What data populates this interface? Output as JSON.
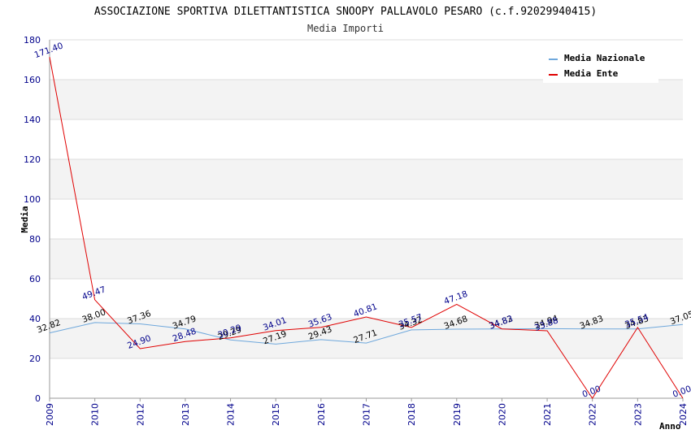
{
  "chart_data": {
    "type": "line",
    "title": "ASSOCIAZIONE SPORTIVA DILETTANTISTICA SNOOPY PALLAVOLO PESARO (c.f.92029940415)",
    "subtitle": "Media Importi",
    "xlabel": "Anno",
    "ylabel": "Media",
    "ylim": [
      0,
      180
    ],
    "yticks": [
      0,
      20,
      40,
      60,
      80,
      100,
      120,
      140,
      160,
      180
    ],
    "x": [
      "2009",
      "2010",
      "2012",
      "2013",
      "2014",
      "2015",
      "2016",
      "2017",
      "2018",
      "2019",
      "2020",
      "2021",
      "2022",
      "2023",
      "2024"
    ],
    "series": [
      {
        "name": "Media Nazionale",
        "color": "#6fa8dc",
        "values": [
          32.82,
          38.0,
          37.36,
          34.79,
          29.29,
          27.19,
          29.43,
          27.71,
          34.32,
          34.68,
          34.82,
          34.94,
          34.83,
          34.83,
          37.05
        ],
        "labels": [
          "32.82",
          "38.00",
          "37.36",
          "34.79",
          "29.29",
          "27.19",
          "29.43",
          "27.71",
          "34.32",
          "34.68",
          "34.82",
          "34.94",
          "34.83",
          "34.83",
          "37.05"
        ]
      },
      {
        "name": "Media Ente",
        "color": "#e00000",
        "values": [
          171.4,
          49.47,
          24.9,
          28.48,
          30.29,
          34.01,
          35.63,
          40.81,
          35.57,
          47.18,
          34.83,
          33.88,
          0.0,
          35.54,
          0.0
        ],
        "labels": [
          "171.40",
          "49.47",
          "24.90",
          "28.48",
          "30.29",
          "34.01",
          "35.63",
          "40.81",
          "35.57",
          "47.18",
          "34.83",
          "33.88",
          "0.00",
          "35.54",
          "0.00"
        ]
      }
    ],
    "grid": true,
    "legend_position": "top-right"
  }
}
